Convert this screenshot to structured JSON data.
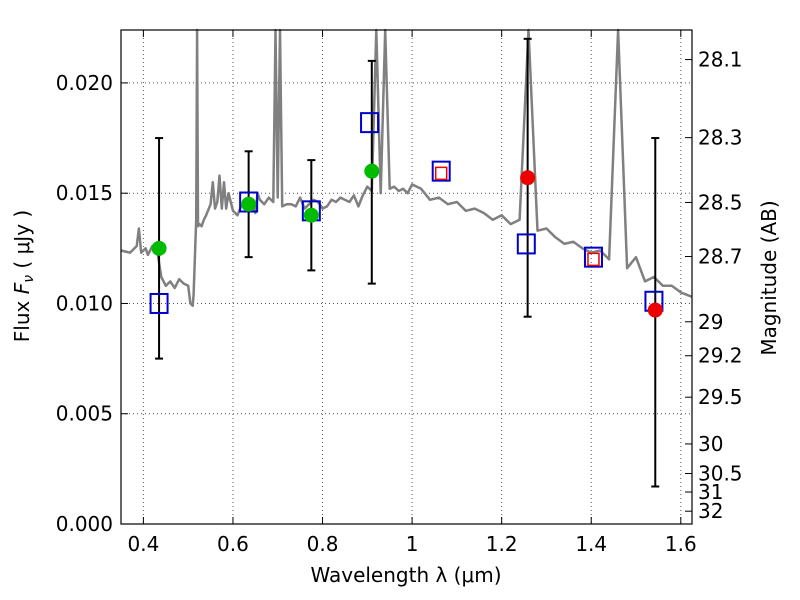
{
  "chart_data": {
    "type": "scatter",
    "xlabel": "Wavelength  λ (μm)",
    "ylabel_text": "Flux  ",
    "ylabel_symbol": "F",
    "ylabel_subscript": "ν",
    "ylabel_units": " ( μJy )",
    "y2label": "Magnitude (AB)",
    "xlim": [
      0.35,
      1.625
    ],
    "ylim": [
      0.0,
      0.0224
    ],
    "grid": true,
    "x_ticks": [
      {
        "value": 0.4,
        "label": "0.4"
      },
      {
        "value": 0.6,
        "label": "0.6"
      },
      {
        "value": 0.8,
        "label": "0.8"
      },
      {
        "value": 1.0,
        "label": "1"
      },
      {
        "value": 1.2,
        "label": "1.2"
      },
      {
        "value": 1.4,
        "label": "1.4"
      },
      {
        "value": 1.6,
        "label": "1.6"
      }
    ],
    "y_ticks": [
      {
        "value": 0.0,
        "label": "0.000"
      },
      {
        "value": 0.005,
        "label": "0.005"
      },
      {
        "value": 0.01,
        "label": "0.010"
      },
      {
        "value": 0.015,
        "label": "0.015"
      },
      {
        "value": 0.02,
        "label": "0.020"
      }
    ],
    "y2_ticks": [
      {
        "flux": 0.02106,
        "label": "28.1"
      },
      {
        "flux": 0.01752,
        "label": "28.3"
      },
      {
        "flux": 0.01458,
        "label": "28.5"
      },
      {
        "flux": 0.01213,
        "label": "28.7"
      },
      {
        "flux": 0.00917,
        "label": "29"
      },
      {
        "flux": 0.00763,
        "label": "29.2"
      },
      {
        "flux": 0.00575,
        "label": "29.5"
      },
      {
        "flux": 0.00363,
        "label": "30"
      },
      {
        "flux": 0.00229,
        "label": "30.5"
      },
      {
        "flux": 0.00145,
        "label": "31"
      },
      {
        "flux": 0.00058,
        "label": "32"
      }
    ],
    "colors": {
      "sed": "#808080",
      "model": "#0000cc",
      "green": "#00bb00",
      "red": "#ee0000",
      "errorbar": "#000000",
      "grid": "#555555"
    },
    "sed_curve": {
      "x": [
        0.35,
        0.37,
        0.385,
        0.39,
        0.395,
        0.4,
        0.405,
        0.41,
        0.415,
        0.42,
        0.425,
        0.43,
        0.44,
        0.45,
        0.46,
        0.47,
        0.48,
        0.49,
        0.5,
        0.505,
        0.51,
        0.512,
        0.518,
        0.52,
        0.522,
        0.525,
        0.53,
        0.535,
        0.54,
        0.55,
        0.555,
        0.56,
        0.565,
        0.57,
        0.575,
        0.58,
        0.585,
        0.59,
        0.6,
        0.61,
        0.62,
        0.63,
        0.64,
        0.65,
        0.655,
        0.66,
        0.67,
        0.68,
        0.69,
        0.695,
        0.7,
        0.705,
        0.71,
        0.72,
        0.73,
        0.74,
        0.75,
        0.76,
        0.77,
        0.78,
        0.79,
        0.8,
        0.81,
        0.82,
        0.83,
        0.84,
        0.85,
        0.86,
        0.87,
        0.88,
        0.89,
        0.9,
        0.91,
        0.92,
        0.93,
        0.94,
        0.95,
        0.96,
        0.97,
        0.98,
        0.99,
        1.0,
        1.02,
        1.04,
        1.06,
        1.08,
        1.1,
        1.12,
        1.14,
        1.16,
        1.18,
        1.2,
        1.22,
        1.24,
        1.26,
        1.28,
        1.3,
        1.32,
        1.34,
        1.36,
        1.38,
        1.4,
        1.42,
        1.44,
        1.46,
        1.48,
        1.5,
        1.52,
        1.54,
        1.56,
        1.58,
        1.6,
        1.625
      ],
      "y": [
        0.0124,
        0.0123,
        0.0126,
        0.0134,
        0.0123,
        0.0124,
        0.0125,
        0.0122,
        0.0124,
        0.0126,
        0.0123,
        0.0125,
        0.0112,
        0.0108,
        0.011,
        0.0107,
        0.0111,
        0.0109,
        0.0108,
        0.01,
        0.0099,
        0.0104,
        0.0138,
        0.0224,
        0.0135,
        0.0136,
        0.0135,
        0.0138,
        0.014,
        0.0145,
        0.0155,
        0.0143,
        0.0146,
        0.0158,
        0.0143,
        0.0155,
        0.0143,
        0.015,
        0.0142,
        0.014,
        0.0145,
        0.0144,
        0.0146,
        0.0141,
        0.015,
        0.0147,
        0.0145,
        0.0148,
        0.0146,
        0.0224,
        0.0148,
        0.0224,
        0.0144,
        0.0145,
        0.0145,
        0.0144,
        0.0148,
        0.0143,
        0.0145,
        0.0147,
        0.0146,
        0.0143,
        0.0144,
        0.0147,
        0.0146,
        0.0148,
        0.0147,
        0.0146,
        0.0149,
        0.0144,
        0.0149,
        0.0153,
        0.0151,
        0.0224,
        0.015,
        0.0224,
        0.0152,
        0.0153,
        0.0151,
        0.0152,
        0.015,
        0.0154,
        0.0152,
        0.0147,
        0.0148,
        0.0145,
        0.0146,
        0.0142,
        0.0143,
        0.0141,
        0.0138,
        0.014,
        0.0136,
        0.0138,
        0.0224,
        0.0133,
        0.0134,
        0.013,
        0.0127,
        0.0128,
        0.0125,
        0.0123,
        0.0124,
        0.012,
        0.0224,
        0.0116,
        0.0121,
        0.011,
        0.0112,
        0.0108,
        0.0108,
        0.0105,
        0.0103
      ]
    },
    "model_squares": [
      {
        "x": 0.435,
        "y": 0.01
      },
      {
        "x": 0.635,
        "y": 0.0146
      },
      {
        "x": 0.775,
        "y": 0.0142
      },
      {
        "x": 0.905,
        "y": 0.0182
      },
      {
        "x": 1.065,
        "y": 0.016
      },
      {
        "x": 1.255,
        "y": 0.0127
      },
      {
        "x": 1.405,
        "y": 0.0121
      },
      {
        "x": 1.54,
        "y": 0.0101
      }
    ],
    "green_points": [
      {
        "x": 0.435,
        "y": 0.0125
      },
      {
        "x": 0.635,
        "y": 0.0145
      },
      {
        "x": 0.775,
        "y": 0.014
      },
      {
        "x": 0.91,
        "y": 0.016
      }
    ],
    "red_points": [
      {
        "x": 1.065,
        "y": 0.0159,
        "size": "small"
      },
      {
        "x": 1.258,
        "y": 0.0157,
        "size": "large"
      },
      {
        "x": 1.405,
        "y": 0.012,
        "size": "small"
      },
      {
        "x": 1.543,
        "y": 0.0097,
        "size": "large"
      }
    ],
    "error_bars": [
      {
        "x": 0.435,
        "low": 0.0075,
        "high": 0.0175
      },
      {
        "x": 0.635,
        "low": 0.0121,
        "high": 0.0169
      },
      {
        "x": 0.775,
        "low": 0.0115,
        "high": 0.0165
      },
      {
        "x": 0.91,
        "low": 0.0109,
        "high": 0.021
      },
      {
        "x": 1.258,
        "low": 0.0094,
        "high": 0.022
      },
      {
        "x": 1.543,
        "low": 0.0017,
        "high": 0.0175
      }
    ]
  }
}
